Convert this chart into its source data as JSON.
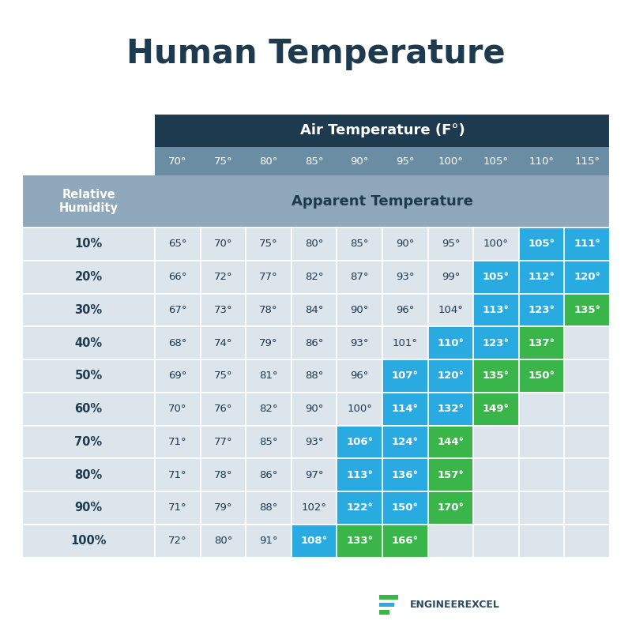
{
  "title": "Human Temperature",
  "air_temp_header": "Air Temperature (F°)",
  "humidity_header": "Relative\nHumidity",
  "apparent_temp_header": "Apparent Temperature",
  "air_temps": [
    "70°",
    "75°",
    "80°",
    "85°",
    "90°",
    "95°",
    "100°",
    "105°",
    "110°",
    "115°"
  ],
  "humidities": [
    "10%",
    "20%",
    "30%",
    "40%",
    "50%",
    "60%",
    "70%",
    "80%",
    "90%",
    "100%"
  ],
  "table_data": [
    [
      "65°",
      "70°",
      "75°",
      "80°",
      "85°",
      "90°",
      "95°",
      "100°",
      "105°",
      "111°"
    ],
    [
      "66°",
      "72°",
      "77°",
      "82°",
      "87°",
      "93°",
      "99°",
      "105°",
      "112°",
      "120°"
    ],
    [
      "67°",
      "73°",
      "78°",
      "84°",
      "90°",
      "96°",
      "104°",
      "113°",
      "123°",
      "135°"
    ],
    [
      "68°",
      "74°",
      "79°",
      "86°",
      "93°",
      "101°",
      "110°",
      "123°",
      "137°",
      ""
    ],
    [
      "69°",
      "75°",
      "81°",
      "88°",
      "96°",
      "107°",
      "120°",
      "135°",
      "150°",
      ""
    ],
    [
      "70°",
      "76°",
      "82°",
      "90°",
      "100°",
      "114°",
      "132°",
      "149°",
      "",
      ""
    ],
    [
      "71°",
      "77°",
      "85°",
      "93°",
      "106°",
      "124°",
      "144°",
      "",
      "",
      ""
    ],
    [
      "71°",
      "78°",
      "86°",
      "97°",
      "113°",
      "136°",
      "157°",
      "",
      "",
      ""
    ],
    [
      "71°",
      "79°",
      "88°",
      "102°",
      "122°",
      "150°",
      "170°",
      "",
      "",
      ""
    ],
    [
      "72°",
      "80°",
      "91°",
      "108°",
      "133°",
      "166°",
      "",
      "",
      "",
      ""
    ]
  ],
  "cell_colors": [
    [
      "none",
      "none",
      "none",
      "none",
      "none",
      "none",
      "none",
      "none",
      "blue",
      "blue"
    ],
    [
      "none",
      "none",
      "none",
      "none",
      "none",
      "none",
      "none",
      "blue",
      "blue",
      "blue"
    ],
    [
      "none",
      "none",
      "none",
      "none",
      "none",
      "none",
      "none",
      "blue",
      "blue",
      "green"
    ],
    [
      "none",
      "none",
      "none",
      "none",
      "none",
      "none",
      "blue",
      "blue",
      "green",
      "empty"
    ],
    [
      "none",
      "none",
      "none",
      "none",
      "none",
      "blue",
      "blue",
      "green",
      "green",
      "empty"
    ],
    [
      "none",
      "none",
      "none",
      "none",
      "none",
      "blue",
      "blue",
      "green",
      "empty",
      "empty"
    ],
    [
      "none",
      "none",
      "none",
      "none",
      "blue",
      "blue",
      "green",
      "empty",
      "empty",
      "empty"
    ],
    [
      "none",
      "none",
      "none",
      "none",
      "blue",
      "blue",
      "green",
      "empty",
      "empty",
      "empty"
    ],
    [
      "none",
      "none",
      "none",
      "none",
      "blue",
      "blue",
      "green",
      "empty",
      "empty",
      "empty"
    ],
    [
      "none",
      "none",
      "none",
      "blue",
      "green",
      "green",
      "empty",
      "empty",
      "empty",
      "empty"
    ]
  ],
  "color_none": "#dde5ec",
  "color_blue": "#29abe2",
  "color_green": "#39b54a",
  "color_empty": "#dde5ec",
  "header_dark_bg": "#1e3a4f",
  "header_light_bg": "#8fa8bb",
  "left_header_bg": "#8fa8bb",
  "left_data_bg": "#dde5ec",
  "background_color": "#ffffff",
  "title_color": "#1e3a4f",
  "col_label_bg": "#6b8da3",
  "row_label_color": "#1e3a4f",
  "cell_text_color_normal": "#1e3a4f",
  "logo_text": "ENGINEEREXCEL",
  "logo_color": "#2d4a5e",
  "logo_bar_colors": [
    "#39b54a",
    "#29abe2",
    "#39b54a"
  ]
}
